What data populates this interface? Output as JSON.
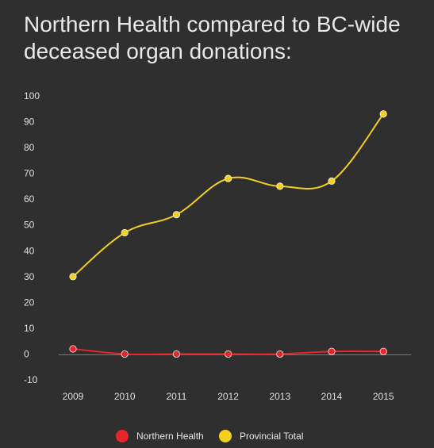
{
  "title": "Northern Health compared to BC-wide deceased organ donations:",
  "chart_data": {
    "type": "line",
    "title": "Northern Health compared to BC-wide deceased organ donations:",
    "x": [
      "2009",
      "2010",
      "2011",
      "2012",
      "2013",
      "2014",
      "2015"
    ],
    "ylim": [
      -10,
      100
    ],
    "yticks": [
      -10,
      0,
      10,
      20,
      30,
      40,
      50,
      60,
      70,
      80,
      90,
      100
    ],
    "grid": false,
    "legend": "bottom",
    "series": [
      {
        "name": "Northern Health",
        "color": "#e8262a",
        "values": [
          2,
          0,
          0,
          0,
          0,
          1,
          1
        ]
      },
      {
        "name": "Provincial Total",
        "color": "#f4cf1e",
        "values": [
          30,
          47,
          54,
          68,
          65,
          67,
          93
        ]
      }
    ]
  }
}
